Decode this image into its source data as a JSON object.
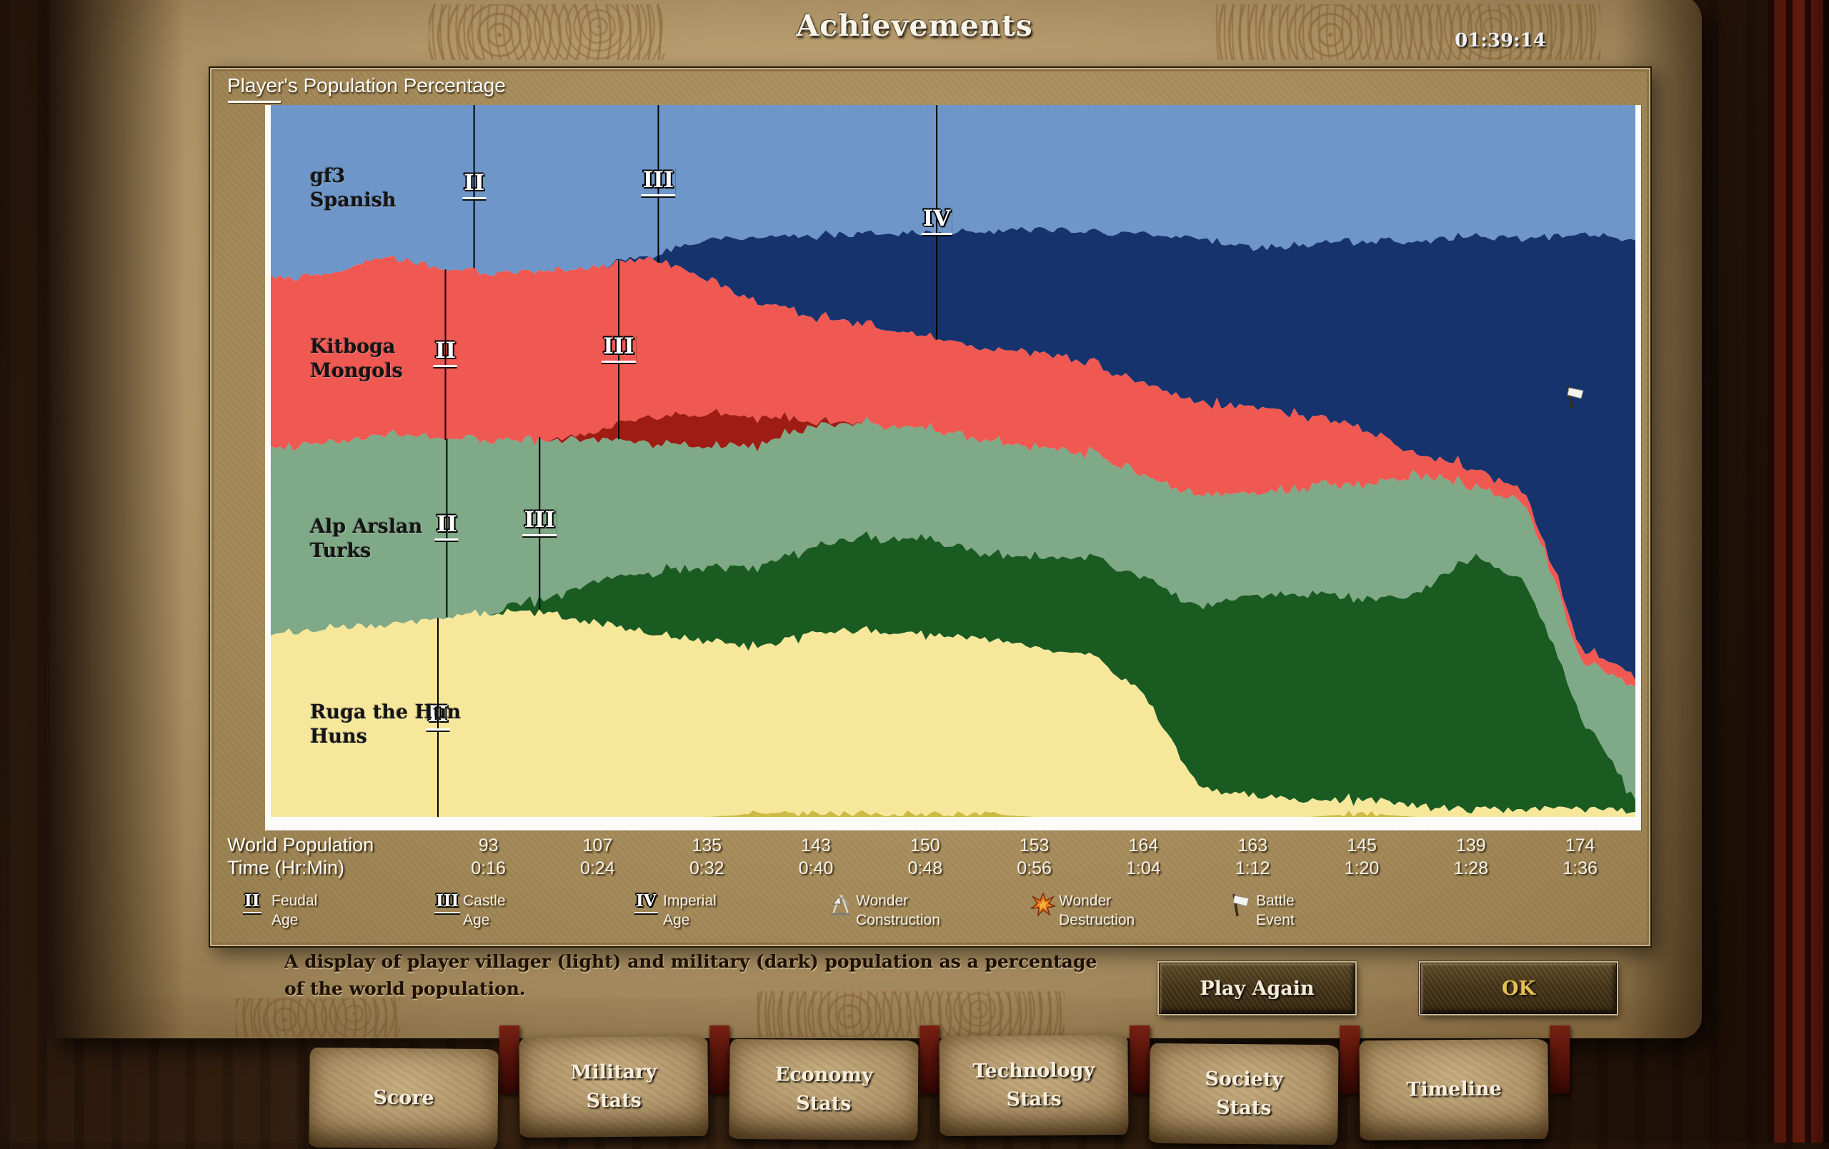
{
  "window": {
    "title": "Achievements",
    "timer": "01:39:14"
  },
  "panel": {
    "chart_title": "Player's Population Percentage",
    "axis": {
      "row1_label": "World Population",
      "row2_label": "Time (Hr:Min)"
    },
    "players": [
      {
        "name": "gf3",
        "civ": "Spanish"
      },
      {
        "name": "Kitboga",
        "civ": "Mongols"
      },
      {
        "name": "Alp Arslan",
        "civ": "Turks"
      },
      {
        "name": "Ruga the Hun",
        "civ": "Huns"
      }
    ],
    "legend": [
      {
        "icon": "roman",
        "numeral": "II",
        "lines": [
          "Feudal",
          "Age"
        ]
      },
      {
        "icon": "roman",
        "numeral": "III",
        "lines": [
          "Castle",
          "Age"
        ]
      },
      {
        "icon": "roman",
        "numeral": "IV",
        "lines": [
          "Imperial",
          "Age"
        ]
      },
      {
        "icon": "crane",
        "lines": [
          "Wonder",
          "Construction"
        ]
      },
      {
        "icon": "boom",
        "lines": [
          "Wonder",
          "Destruction"
        ]
      },
      {
        "icon": "flag",
        "lines": [
          "Battle",
          "Event"
        ]
      }
    ]
  },
  "chart_data": {
    "type": "area",
    "stacked_percent": true,
    "title": "Player's Population Percentage",
    "x_label": "Time (Hr:Min)",
    "x_minutes": [
      0,
      4,
      8,
      12,
      16,
      20,
      24,
      28,
      32,
      36,
      40,
      44,
      48,
      52,
      56,
      60,
      64,
      68,
      72,
      76,
      80,
      84,
      88,
      92,
      96,
      100
    ],
    "x_ticks": [
      {
        "time": "0:16",
        "world_population": "93"
      },
      {
        "time": "0:24",
        "world_population": "107"
      },
      {
        "time": "0:32",
        "world_population": "135"
      },
      {
        "time": "0:40",
        "world_population": "143"
      },
      {
        "time": "0:48",
        "world_population": "150"
      },
      {
        "time": "0:56",
        "world_population": "153"
      },
      {
        "time": "1:04",
        "world_population": "164"
      },
      {
        "time": "1:12",
        "world_population": "163"
      },
      {
        "time": "1:20",
        "world_population": "145"
      },
      {
        "time": "1:28",
        "world_population": "139"
      },
      {
        "time": "1:36",
        "world_population": "174"
      }
    ],
    "series": [
      {
        "name": "gf3 villagers (Spanish)",
        "color": "#6E96C8",
        "values": [
          24.5,
          24,
          21.5,
          22.5,
          23.5,
          23,
          22.5,
          22,
          20,
          19.5,
          19.5,
          19.5,
          20,
          19.5,
          19,
          19.5,
          19,
          18.5,
          20,
          19.5,
          19,
          19.5,
          18.5,
          19,
          18,
          19
        ]
      },
      {
        "name": "gf3 military (Spanish)",
        "color": "#16336E",
        "values": [
          0,
          0,
          0,
          0,
          0,
          0,
          0,
          0.5,
          6,
          10,
          12,
          14,
          16,
          18,
          19,
          20,
          22,
          23,
          22,
          24,
          26,
          30,
          33,
          36,
          58,
          61
        ]
      },
      {
        "name": "Kitboga villagers (Mongols)",
        "color": "#F05852",
        "values": [
          23.8,
          23.5,
          25,
          24,
          23,
          23.5,
          23,
          23,
          20,
          17,
          15.5,
          15,
          14.5,
          14,
          14.5,
          14,
          13.5,
          13,
          12,
          10,
          8,
          3,
          2.5,
          1.5,
          1.5,
          1.5
        ]
      },
      {
        "name": "Kitboga military (Mongols)",
        "color": "#9E1C14",
        "values": [
          0,
          0,
          0,
          0,
          0,
          0,
          1,
          4,
          5,
          4,
          0.5,
          0,
          0,
          0,
          0,
          0,
          0,
          0,
          0,
          0,
          0,
          0,
          0,
          0,
          0,
          0
        ]
      },
      {
        "name": "Alp Arslan villagers (Turks)",
        "color": "#7FA987",
        "values": [
          26.2,
          26,
          27,
          25.5,
          24,
          22,
          20,
          19,
          18,
          18.5,
          18,
          17.5,
          17,
          17.5,
          17,
          16,
          15,
          15.5,
          14,
          15,
          16,
          17,
          10,
          11,
          8,
          16
        ]
      },
      {
        "name": "Alp Arslan military (Turks)",
        "color": "#1A5B22",
        "values": [
          0,
          0,
          0,
          0,
          0,
          2,
          6,
          9,
          11,
          12,
          13,
          14,
          15,
          13,
          14,
          15,
          17,
          25,
          28,
          29,
          28,
          30,
          36,
          32,
          13,
          1.5
        ]
      },
      {
        "name": "Ruga the Hun villagers (Huns)",
        "color": "#F7E79A",
        "values": [
          25.5,
          26.5,
          27,
          28,
          28.5,
          28.5,
          27,
          27,
          26,
          25,
          27,
          28,
          28,
          27,
          26,
          25,
          18,
          4,
          3,
          2,
          2,
          1.5,
          1,
          1,
          1,
          1
        ]
      },
      {
        "name": "Ruga the Hun military (Huns)",
        "color": "#CDBA45",
        "values": [
          0,
          0,
          0,
          0,
          0,
          0,
          0,
          0,
          0,
          0.5,
          0.5,
          0.5,
          0.5,
          0.5,
          0,
          0,
          0,
          0,
          0,
          0,
          0.5,
          0,
          0,
          0,
          0,
          0
        ]
      }
    ],
    "age_markers": [
      {
        "player": 0,
        "age": "II",
        "t_min": 14.9
      },
      {
        "player": 0,
        "age": "III",
        "t_min": 28.4
      },
      {
        "player": 0,
        "age": "IV",
        "t_min": 48.8
      },
      {
        "player": 1,
        "age": "II",
        "t_min": 12.8
      },
      {
        "player": 1,
        "age": "III",
        "t_min": 25.5
      },
      {
        "player": 2,
        "age": "II",
        "t_min": 12.9
      },
      {
        "player": 2,
        "age": "III",
        "t_min": 19.7
      },
      {
        "player": 3,
        "age": "II",
        "t_min": 12.25
      }
    ],
    "battle_events": [
      {
        "t_min": 95.5,
        "y_frac": 0.41
      }
    ]
  },
  "description": "A display of player villager (light) and military (dark) population as a percentage of the world population.",
  "buttons": {
    "play_again": "Play Again",
    "ok": "OK"
  },
  "tabs": [
    {
      "lines": [
        "Score"
      ]
    },
    {
      "lines": [
        "Military",
        "Stats"
      ]
    },
    {
      "lines": [
        "Economy",
        "Stats"
      ]
    },
    {
      "lines": [
        "Technology",
        "Stats"
      ]
    },
    {
      "lines": [
        "Society",
        "Stats"
      ]
    },
    {
      "lines": [
        "Timeline"
      ]
    }
  ]
}
